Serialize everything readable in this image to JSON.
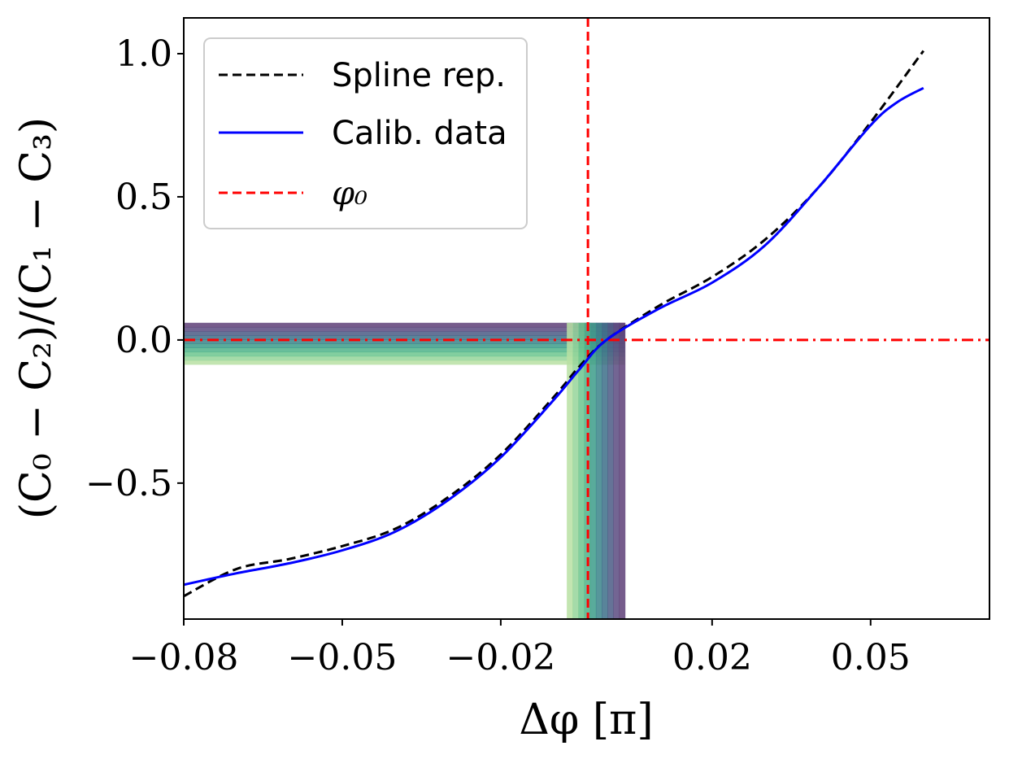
{
  "chart_data": {
    "type": "line",
    "xlabel": "Δφ [π]",
    "ylabel": "(C₀ − C₂)/(C₁ − C₃)",
    "xlim": [
      -0.08,
      0.0725
    ],
    "ylim": [
      -0.975,
      1.125
    ],
    "xticks": [
      -0.08,
      -0.05,
      -0.02,
      0.02,
      0.05
    ],
    "xtick_labels": [
      "−0.08",
      "−0.05",
      "−0.02",
      "0.02",
      "0.05"
    ],
    "yticks": [
      -0.5,
      0.0,
      0.5,
      1.0
    ],
    "ytick_labels": [
      "−0.5",
      "0.0",
      "0.5",
      "1.0"
    ],
    "phi0": 0.0,
    "crossing_x": -0.0035,
    "band": {
      "x_min": -0.0075,
      "x_max": 0.0035,
      "y_min": -0.085,
      "y_max": 0.06,
      "colors": [
        "#b8e0a3",
        "#95d59a",
        "#6cc58e",
        "#4fb389",
        "#3c9c8a",
        "#3a8489",
        "#3c6e88",
        "#4a5a85",
        "#5a4a80",
        "#5e3f78"
      ]
    },
    "series": [
      {
        "name": "Spline rep.",
        "style": "dashed",
        "color": "#000000",
        "x": [
          -0.08,
          -0.07,
          -0.06,
          -0.05,
          -0.04,
          -0.03,
          -0.02,
          -0.01,
          -0.005,
          0.0,
          0.01,
          0.02,
          0.03,
          0.04,
          0.05,
          0.06
        ],
        "y": [
          -0.895,
          -0.8,
          -0.765,
          -0.72,
          -0.66,
          -0.55,
          -0.4,
          -0.2,
          -0.09,
          0.0,
          0.12,
          0.22,
          0.35,
          0.53,
          0.76,
          1.01
        ]
      },
      {
        "name": "Calib. data",
        "style": "solid",
        "color": "#0000ff",
        "x": [
          -0.08,
          -0.07,
          -0.06,
          -0.05,
          -0.04,
          -0.03,
          -0.02,
          -0.01,
          -0.005,
          0.0,
          0.01,
          0.02,
          0.03,
          0.04,
          0.05,
          0.055,
          0.06
        ],
        "y": [
          -0.855,
          -0.815,
          -0.78,
          -0.735,
          -0.67,
          -0.56,
          -0.41,
          -0.21,
          -0.1,
          0.0,
          0.11,
          0.2,
          0.33,
          0.53,
          0.75,
          0.83,
          0.88
        ]
      }
    ],
    "legend": {
      "position": "upper-left",
      "entries": [
        {
          "label": "Spline rep.",
          "color": "#000000",
          "style": "dashed"
        },
        {
          "label": "Calib. data",
          "color": "#0000ff",
          "style": "solid"
        },
        {
          "label": "φ₀",
          "color": "#ff0000",
          "style": "dashed"
        }
      ]
    }
  }
}
